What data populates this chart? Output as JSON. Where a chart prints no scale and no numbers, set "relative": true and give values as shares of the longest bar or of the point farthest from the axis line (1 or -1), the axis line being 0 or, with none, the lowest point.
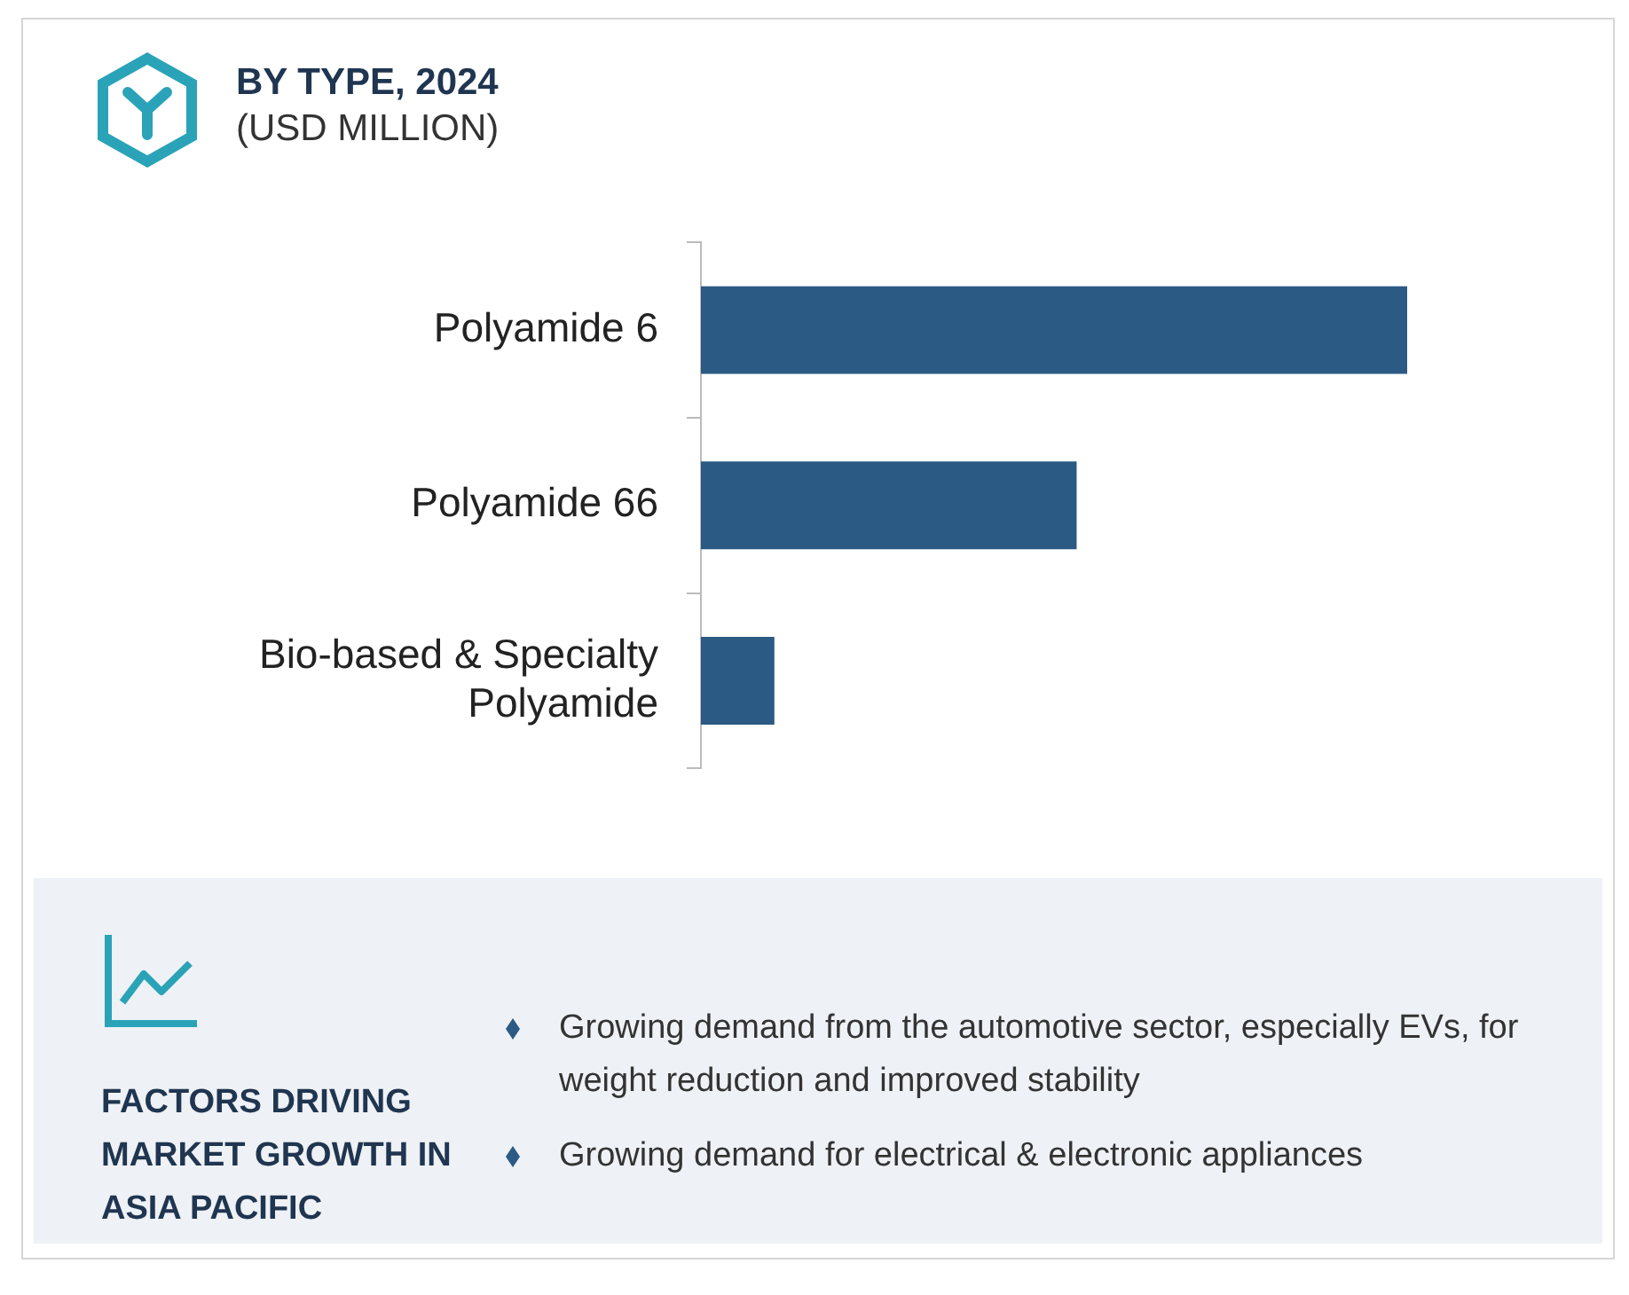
{
  "chart_data": {
    "type": "bar",
    "orientation": "horizontal",
    "relative": true,
    "title": "BY TYPE, 2024",
    "subtitle": "(USD MILLION)",
    "categories": [
      "Polyamide 6",
      "Polyamide 66",
      "Bio-based & Specialty Polyamide"
    ],
    "values": [
      1,
      0.532,
      0.104
    ],
    "color": "#2b5a84",
    "legend": false,
    "annotations": [
      "FACTORS DRIVING MARKET GROWTH IN ASIA PACIFIC",
      "Growing demand from the automotive sector, especially EVs, for weight reduction and improved stability",
      "Growing demand for electrical & electronic appliances"
    ]
  }
}
